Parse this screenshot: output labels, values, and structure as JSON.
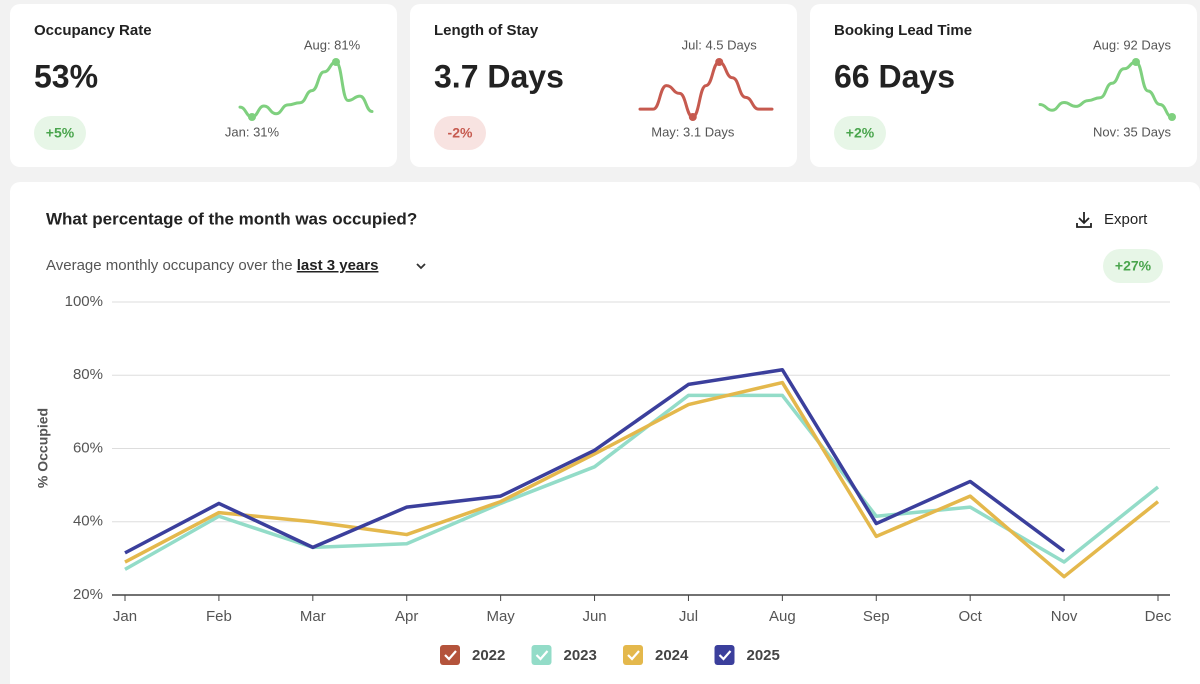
{
  "cards": [
    {
      "title": "Occupancy Rate",
      "value": "53%",
      "change": "+5%"
    },
    {
      "title": "Length of Stay",
      "value": "3.7 Days",
      "change": "-2%"
    },
    {
      "title": "Booking Lead Time",
      "value": "66 Days",
      "change": "+2%"
    }
  ],
  "panel": {
    "title": "What percentage of the month was occupied?",
    "export": "Export",
    "subtitle": "Average monthly occupancy over the",
    "subtitle_link": "last 3 years",
    "change": "+27%"
  },
  "chart_data": [
    {
      "type": "sparkline",
      "color": "#7fd07f",
      "values": [
        40,
        31,
        41,
        34,
        42,
        44,
        55,
        72,
        81,
        46,
        50,
        36
      ],
      "annotations": [
        {
          "text": "Aug: 81%",
          "value": 81
        },
        {
          "text": "Jan: 31%",
          "value": 31
        }
      ]
    },
    {
      "type": "sparkline",
      "color": "#c65a4f",
      "values": [
        3.3,
        3.3,
        3.9,
        3.7,
        3.1,
        3.9,
        4.5,
        4.1,
        3.6,
        3.3,
        3.3
      ],
      "annotations": [
        {
          "text": "Jul: 4.5 Days",
          "value": 4.5
        },
        {
          "text": "May: 3.1 Days",
          "value": 3.1
        }
      ]
    },
    {
      "type": "sparkline",
      "color": "#7fd07f",
      "values": [
        48,
        42,
        50,
        46,
        52,
        55,
        70,
        85,
        92,
        62,
        48,
        35
      ],
      "annotations": [
        {
          "text": "Aug: 92 Days",
          "value": 92
        },
        {
          "text": "Nov: 35 Days",
          "value": 35
        }
      ]
    },
    {
      "type": "line",
      "ylabel": "% Occupied",
      "categories": [
        "Jan",
        "Feb",
        "Mar",
        "Apr",
        "May",
        "Jun",
        "Jul",
        "Aug",
        "Sep",
        "Oct",
        "Nov",
        "Dec"
      ],
      "series": [
        {
          "name": "2022",
          "color": "#b4533b",
          "values": [
            null,
            null,
            null,
            null,
            null,
            null,
            null,
            null,
            null,
            null,
            null,
            null
          ]
        },
        {
          "name": "2023",
          "color": "#93dcc8",
          "values": [
            27,
            41.5,
            33,
            34,
            45,
            55,
            74.5,
            74.5,
            41.5,
            44,
            29,
            49.5
          ]
        },
        {
          "name": "2024",
          "color": "#e4b84c",
          "values": [
            29,
            42.5,
            40,
            36.5,
            45.5,
            58.5,
            72,
            78,
            36,
            47,
            25,
            45.5
          ]
        },
        {
          "name": "2025",
          "color": "#3b3f9c",
          "values": [
            31.5,
            45,
            33,
            44,
            47,
            59.5,
            77.5,
            81.5,
            39.5,
            51,
            32,
            null
          ]
        }
      ],
      "ylim": [
        20,
        100
      ],
      "yticks": [
        {
          "value": 20,
          "label": "20%"
        },
        {
          "value": 40,
          "label": "40%"
        },
        {
          "value": 60,
          "label": "60%"
        },
        {
          "value": 80,
          "label": "80%"
        },
        {
          "value": 100,
          "label": "100%"
        }
      ],
      "grid": true
    }
  ]
}
